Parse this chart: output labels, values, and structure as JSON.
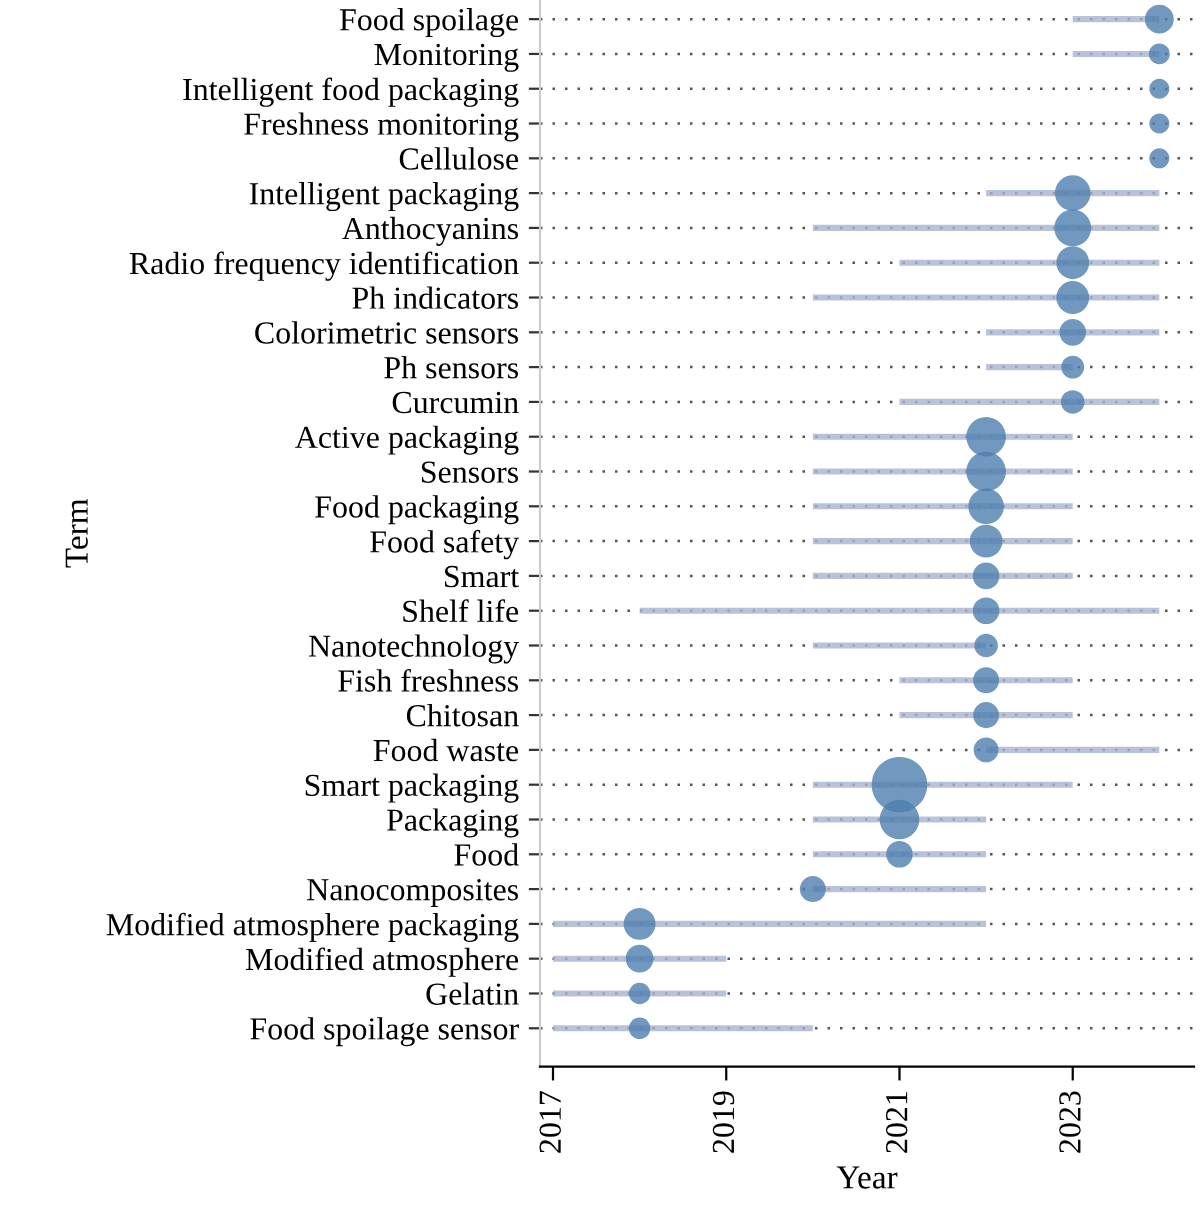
{
  "chart_data": {
    "type": "bubble",
    "orientation": "horizontal",
    "xlabel": "Year",
    "ylabel": "Term",
    "categories": [
      "Food spoilage",
      "Monitoring",
      "Intelligent food packaging",
      "Freshness monitoring",
      "Cellulose",
      "Intelligent packaging",
      "Anthocyanins",
      "Radio frequency identification",
      "Ph indicators",
      "Colorimetric sensors",
      "Ph sensors",
      "Curcumin",
      "Active packaging",
      "Sensors",
      "Food packaging",
      "Food safety",
      "Smart",
      "Shelf life",
      "Nanotechnology",
      "Fish freshness",
      "Chitosan",
      "Food waste",
      "Smart packaging",
      "Packaging",
      "Food",
      "Nanocomposites",
      "Modified atmosphere packaging",
      "Modified atmosphere",
      "Gelatin",
      "Food spoilage sensor"
    ],
    "values": [
      2024,
      2024,
      2024,
      2024,
      2024,
      2023,
      2023,
      2023,
      2023,
      2023,
      2023,
      2023,
      2022,
      2022,
      2022,
      2022,
      2022,
      2022,
      2022,
      2022,
      2022,
      2022,
      2021,
      2021,
      2021,
      2020,
      2018,
      2018,
      2018,
      2018
    ],
    "sizes": [
      0.27,
      0.14,
      0.13,
      0.13,
      0.13,
      0.41,
      0.44,
      0.35,
      0.35,
      0.23,
      0.17,
      0.18,
      0.51,
      0.51,
      0.41,
      0.35,
      0.23,
      0.23,
      0.18,
      0.22,
      0.22,
      0.2,
      1,
      0.51,
      0.23,
      0.22,
      0.33,
      0.25,
      0.15,
      0.15
    ],
    "errors": [
      [
        2023,
        2024
      ],
      [
        2023,
        2024
      ],
      null,
      null,
      null,
      [
        2022,
        2024
      ],
      [
        2020,
        2024
      ],
      [
        2021,
        2024
      ],
      [
        2020,
        2024
      ],
      [
        2022,
        2024
      ],
      [
        2022,
        2023
      ],
      [
        2021,
        2024
      ],
      [
        2020,
        2023
      ],
      [
        2020,
        2023
      ],
      [
        2020,
        2023
      ],
      [
        2020,
        2023
      ],
      [
        2020,
        2023
      ],
      [
        2018,
        2024
      ],
      [
        2020,
        2022
      ],
      [
        2021,
        2023
      ],
      [
        2021,
        2023
      ],
      [
        2022,
        2024
      ],
      [
        2020,
        2023
      ],
      [
        2020,
        2022
      ],
      [
        2020,
        2022
      ],
      [
        2020,
        2022
      ],
      [
        2017,
        2022
      ],
      [
        2017,
        2019
      ],
      [
        2017,
        2019
      ],
      [
        2017,
        2020
      ]
    ],
    "color": "#4d7eae",
    "xlim": [
      2016.85,
      2024.4
    ],
    "xticks": [
      2017,
      2019,
      2021,
      2023
    ],
    "grid": "y",
    "legend": false
  }
}
